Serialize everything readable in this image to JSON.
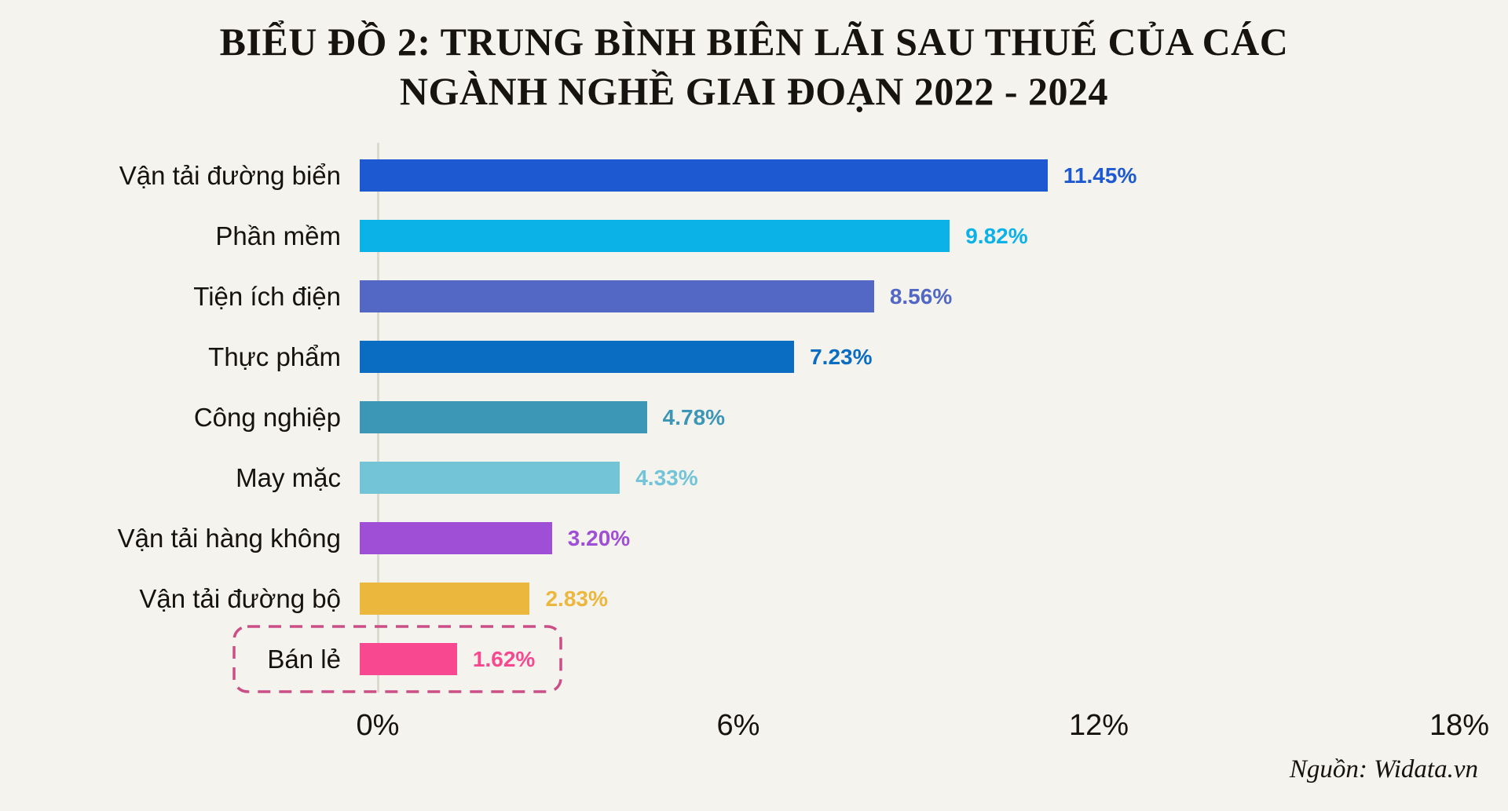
{
  "title": {
    "line1": "BIỂU ĐỒ 2: TRUNG BÌNH BIÊN LÃI SAU THUẾ CỦA CÁC",
    "line2": "NGÀNH NGHỀ GIAI ĐOẠN 2022 - 2024"
  },
  "chart_data": {
    "type": "bar",
    "orientation": "horizontal",
    "categories": [
      "Vận tải đường biển",
      "Phần mềm",
      "Tiện ích điện",
      "Thực phẩm",
      "Công nghiệp",
      "May mặc",
      "Vận tải hàng không",
      "Vận tải đường bộ",
      "Bán lẻ"
    ],
    "values": [
      11.45,
      9.82,
      8.56,
      7.23,
      4.78,
      4.33,
      3.2,
      2.83,
      1.62
    ],
    "display_values": [
      "11.45%",
      "9.82%",
      "8.56%",
      "7.23%",
      "4.78%",
      "4.33%",
      "3.20%",
      "2.83%",
      "1.62%"
    ],
    "bar_colors": [
      "#1d59d0",
      "#0ab2e8",
      "#5268c4",
      "#0a6dc2",
      "#3c96b5",
      "#72c4d6",
      "#9f4fd6",
      "#ecb73d",
      "#f8488f"
    ],
    "xlabel": "",
    "ylabel": "",
    "xlim": [
      0,
      18
    ],
    "x_ticks": [
      {
        "value": 0,
        "label": "0%"
      },
      {
        "value": 6,
        "label": "6%"
      },
      {
        "value": 12,
        "label": "12%"
      },
      {
        "value": 18,
        "label": "18%"
      }
    ],
    "grid": false,
    "legend": false,
    "highlight": {
      "category": "Bán lẻ",
      "category_index": 8,
      "style": "dashed-rounded-outline",
      "outline_color": "#cc4e86"
    }
  },
  "source": "Nguồn: Widata.vn",
  "colors": {
    "background": "#f5f3ed",
    "axis_line": "#dcd9d1",
    "title_text": "#161310",
    "label_text": "#16130e",
    "tick_text": "#16130e",
    "highlight_outline": "#cc4e86"
  }
}
